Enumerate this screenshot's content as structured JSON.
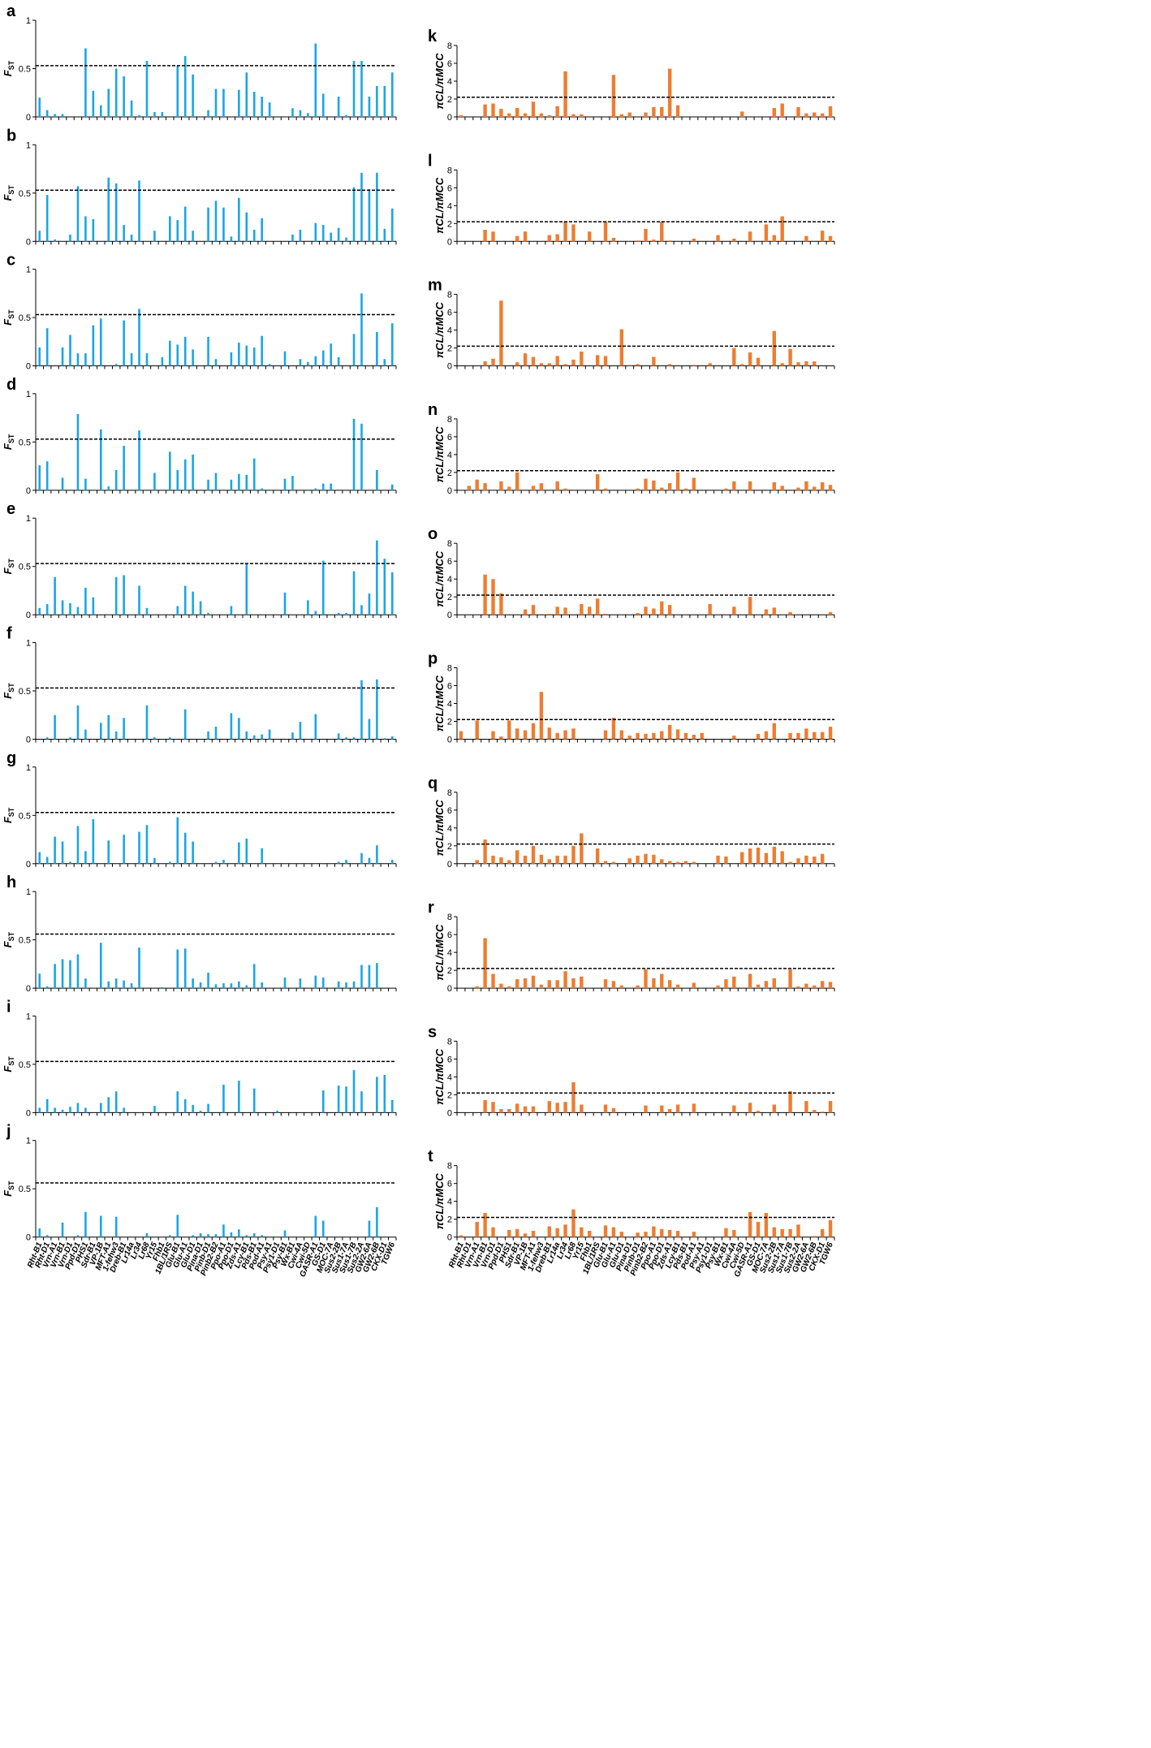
{
  "genes": [
    "Rht-B1",
    "Rht-D1",
    "Vrn-A1",
    "Vrn-B1",
    "Vrn-D1",
    "Ppd-D1",
    "PHS1",
    "Sdr-B1",
    "VP-1B",
    "MFT-A1",
    "1-fehw3",
    "Dreb-B1",
    "Lr14a",
    "Lr34",
    "Lr68",
    "Yr15",
    "Fhb1",
    "1BL/1RS",
    "Glu-B1",
    "Glu-A1",
    "Glu-D1",
    "Pina-D1",
    "Pinb-D1",
    "Pinb2-B2",
    "Ppo-A1",
    "Ppo-D1",
    "Zds-A1",
    "Lcy-B1",
    "Pds-B1",
    "Pod-A1",
    "Psy-A1",
    "Psy1-D1",
    "Psy-B1",
    "Wx-B1",
    "Cwi-4A",
    "Cwi-5D",
    "GASR-A1",
    "GS-D1",
    "MOC-7A",
    "Sus2-2B",
    "Sus1-7A",
    "Sus1-7B",
    "Sus2-2A",
    "GW2-6A",
    "GW2-6B",
    "CKX-D1",
    "TGW6"
  ],
  "colors": {
    "fst": "#1aa6e4",
    "pi": "#ed7d31",
    "axis": "#000000"
  },
  "chart_data": [
    {
      "label": "a",
      "type": "bar",
      "ylabel": "F",
      "ylabel_sub": "ST",
      "ylim": [
        0,
        1
      ],
      "yticks": [
        "0",
        "0.5",
        "1"
      ],
      "threshold": 0.53,
      "values": [
        0.2,
        0.07,
        0.03,
        0.03,
        0.0,
        0.0,
        0.71,
        0.27,
        0.12,
        0.29,
        0.5,
        0.42,
        0.17,
        0.02,
        0.58,
        0.05,
        0.05,
        0.0,
        0.53,
        0.63,
        0.44,
        0.0,
        0.07,
        0.29,
        0.29,
        0.0,
        0.28,
        0.46,
        0.26,
        0.21,
        0.15,
        0.0,
        0.0,
        0.09,
        0.07,
        0.04,
        0.76,
        0.24,
        0.0,
        0.21,
        0.02,
        0.58,
        0.58,
        0.21,
        0.32,
        0.32,
        0.46
      ]
    },
    {
      "label": "b",
      "type": "bar",
      "ylabel": "F",
      "ylabel_sub": "ST",
      "ylim": [
        0,
        1
      ],
      "yticks": [
        "0",
        "0.5",
        "1"
      ],
      "threshold": 0.53,
      "values": [
        0.11,
        0.48,
        0.02,
        0.0,
        0.07,
        0.57,
        0.26,
        0.23,
        0.0,
        0.66,
        0.6,
        0.17,
        0.07,
        0.63,
        0.0,
        0.11,
        0.0,
        0.26,
        0.22,
        0.36,
        0.11,
        0.0,
        0.35,
        0.42,
        0.35,
        0.05,
        0.45,
        0.3,
        0.12,
        0.24,
        0.0,
        0.0,
        0.0,
        0.07,
        0.12,
        0.0,
        0.19,
        0.17,
        0.09,
        0.14,
        0.04,
        0.56,
        0.71,
        0.54,
        0.71,
        0.13,
        0.34
      ]
    },
    {
      "label": "c",
      "type": "bar",
      "ylabel": "F",
      "ylabel_sub": "ST",
      "ylim": [
        0,
        1
      ],
      "yticks": [
        "0",
        "0.5",
        "1"
      ],
      "threshold": 0.53,
      "values": [
        0.19,
        0.39,
        0.0,
        0.19,
        0.32,
        0.13,
        0.13,
        0.42,
        0.49,
        0.0,
        0.02,
        0.47,
        0.13,
        0.59,
        0.13,
        0.0,
        0.09,
        0.26,
        0.22,
        0.3,
        0.17,
        0.0,
        0.3,
        0.07,
        0.0,
        0.14,
        0.24,
        0.21,
        0.19,
        0.31,
        0.02,
        0.0,
        0.15,
        0.0,
        0.07,
        0.04,
        0.1,
        0.16,
        0.23,
        0.09,
        0.0,
        0.33,
        0.75,
        0.0,
        0.35,
        0.07,
        0.44
      ]
    },
    {
      "label": "d",
      "type": "bar",
      "ylabel": "F",
      "ylabel_sub": "ST",
      "ylim": [
        0,
        1
      ],
      "yticks": [
        "0",
        "0.5",
        "1"
      ],
      "threshold": 0.53,
      "values": [
        0.26,
        0.3,
        0.0,
        0.13,
        0.0,
        0.79,
        0.12,
        0.0,
        0.63,
        0.04,
        0.21,
        0.46,
        0.0,
        0.62,
        0.0,
        0.18,
        0.0,
        0.4,
        0.21,
        0.32,
        0.37,
        0.0,
        0.11,
        0.18,
        0.0,
        0.11,
        0.17,
        0.16,
        0.33,
        0.02,
        0.0,
        0.0,
        0.12,
        0.15,
        0.0,
        0.0,
        0.02,
        0.07,
        0.07,
        0.0,
        0.0,
        0.74,
        0.69,
        0.0,
        0.21,
        0.0,
        0.06
      ]
    },
    {
      "label": "e",
      "type": "bar",
      "ylabel": "F",
      "ylabel_sub": "ST",
      "ylim": [
        0,
        1
      ],
      "yticks": [
        "0",
        "0.5",
        "1"
      ],
      "threshold": 0.53,
      "values": [
        0.07,
        0.11,
        0.39,
        0.15,
        0.12,
        0.08,
        0.28,
        0.18,
        0.0,
        0.0,
        0.39,
        0.41,
        0.0,
        0.3,
        0.07,
        0.0,
        0.0,
        0.0,
        0.09,
        0.3,
        0.24,
        0.14,
        0.02,
        0.0,
        0.0,
        0.09,
        0.0,
        0.53,
        0.0,
        0.0,
        0.0,
        0.0,
        0.23,
        0.0,
        0.0,
        0.15,
        0.04,
        0.56,
        0.0,
        0.02,
        0.02,
        0.45,
        0.1,
        0.22,
        0.77,
        0.58,
        0.44
      ]
    },
    {
      "label": "f",
      "type": "bar",
      "ylabel": "F",
      "ylabel_sub": "ST",
      "ylim": [
        0,
        1
      ],
      "yticks": [
        "0",
        "0.5",
        "1"
      ],
      "threshold": 0.53,
      "values": [
        0.0,
        0.02,
        0.25,
        0.0,
        0.02,
        0.35,
        0.1,
        0.0,
        0.17,
        0.25,
        0.08,
        0.22,
        0.0,
        0.0,
        0.35,
        0.02,
        0.0,
        0.02,
        0.0,
        0.31,
        0.0,
        0.0,
        0.08,
        0.13,
        0.0,
        0.27,
        0.22,
        0.08,
        0.04,
        0.05,
        0.1,
        0.0,
        0.0,
        0.07,
        0.18,
        0.0,
        0.26,
        0.0,
        0.0,
        0.06,
        0.02,
        0.02,
        0.61,
        0.21,
        0.62,
        0.01,
        0.03
      ]
    },
    {
      "label": "g",
      "type": "bar",
      "ylabel": "F",
      "ylabel_sub": "ST",
      "ylim": [
        0,
        1
      ],
      "yticks": [
        "0",
        "0.5",
        "1"
      ],
      "threshold": 0.53,
      "values": [
        0.12,
        0.07,
        0.28,
        0.23,
        0.02,
        0.39,
        0.13,
        0.46,
        0.0,
        0.24,
        0.0,
        0.3,
        0.0,
        0.33,
        0.4,
        0.06,
        0.0,
        0.02,
        0.48,
        0.32,
        0.23,
        0.0,
        0.0,
        0.02,
        0.04,
        0.0,
        0.22,
        0.26,
        0.0,
        0.16,
        0.0,
        0.0,
        0.0,
        0.0,
        0.0,
        0.0,
        0.0,
        0.0,
        0.0,
        0.02,
        0.04,
        0.0,
        0.11,
        0.06,
        0.19,
        0.0,
        0.04
      ]
    },
    {
      "label": "h",
      "type": "bar",
      "ylabel": "F",
      "ylabel_sub": "ST",
      "ylim": [
        0,
        1
      ],
      "yticks": [
        "0",
        "0.5",
        "1"
      ],
      "threshold": 0.56,
      "values": [
        0.15,
        0.02,
        0.25,
        0.3,
        0.29,
        0.35,
        0.1,
        0.0,
        0.47,
        0.07,
        0.1,
        0.08,
        0.05,
        0.42,
        0.0,
        0.0,
        0.01,
        0.0,
        0.4,
        0.41,
        0.1,
        0.06,
        0.16,
        0.04,
        0.05,
        0.05,
        0.07,
        0.03,
        0.25,
        0.06,
        0.0,
        0.0,
        0.11,
        0.0,
        0.1,
        0.0,
        0.13,
        0.11,
        0.0,
        0.07,
        0.06,
        0.07,
        0.24,
        0.24,
        0.26,
        0.0,
        0.0
      ]
    },
    {
      "label": "i",
      "type": "bar",
      "ylabel": "F",
      "ylabel_sub": "ST",
      "ylim": [
        0,
        1
      ],
      "yticks": [
        "0",
        "0.5",
        "1"
      ],
      "threshold": 0.53,
      "values": [
        0.05,
        0.14,
        0.05,
        0.03,
        0.06,
        0.1,
        0.05,
        0.0,
        0.1,
        0.16,
        0.22,
        0.05,
        0.0,
        0.0,
        0.0,
        0.07,
        0.0,
        0.0,
        0.22,
        0.14,
        0.08,
        0.02,
        0.09,
        0.0,
        0.29,
        0.0,
        0.33,
        0.0,
        0.25,
        0.0,
        0.0,
        0.02,
        0.0,
        0.0,
        0.0,
        0.0,
        0.0,
        0.23,
        0.0,
        0.28,
        0.27,
        0.44,
        0.22,
        0.0,
        0.37,
        0.39,
        0.13
      ]
    },
    {
      "label": "j",
      "type": "bar",
      "ylabel": "F",
      "ylabel_sub": "ST",
      "ylim": [
        0,
        1
      ],
      "yticks": [
        "0",
        "0.5",
        "1"
      ],
      "threshold": 0.56,
      "values": [
        0.09,
        0.02,
        0.0,
        0.15,
        0.0,
        0.02,
        0.26,
        0.0,
        0.22,
        0.0,
        0.21,
        0.0,
        0.0,
        0.0,
        0.04,
        0.0,
        0.0,
        0.02,
        0.23,
        0.0,
        0.02,
        0.04,
        0.03,
        0.03,
        0.13,
        0.05,
        0.08,
        0.02,
        0.04,
        0.02,
        0.0,
        0.0,
        0.07,
        0.0,
        0.0,
        0.0,
        0.22,
        0.17,
        0.0,
        0.0,
        0.0,
        0.0,
        0.0,
        0.17,
        0.31,
        0.0,
        0.0
      ]
    },
    {
      "label": "k",
      "type": "bar",
      "ylabel": "πCL/πMCC",
      "ylim": [
        0,
        8
      ],
      "yticks": [
        "0",
        "2",
        "4",
        "6",
        "8"
      ],
      "threshold": 2.2,
      "values": [
        0.2,
        0.0,
        0.0,
        1.4,
        1.5,
        0.9,
        0.4,
        1.0,
        0.4,
        1.7,
        0.4,
        0.2,
        1.2,
        5.1,
        0.3,
        0.3,
        0.0,
        0.0,
        0.0,
        4.7,
        0.3,
        0.5,
        0.0,
        0.5,
        1.1,
        1.1,
        5.4,
        1.3,
        0.0,
        0.0,
        0.0,
        0.0,
        0.0,
        0.0,
        0.0,
        0.6,
        0.0,
        0.0,
        0.0,
        1.0,
        1.5,
        0.0,
        1.1,
        0.4,
        0.5,
        0.4,
        1.2
      ]
    },
    {
      "label": "l",
      "type": "bar",
      "ylabel": "πCL/πMCC",
      "ylim": [
        0,
        8
      ],
      "yticks": [
        "0",
        "2",
        "4",
        "6",
        "8"
      ],
      "threshold": 2.2,
      "values": [
        0.0,
        0.0,
        0.0,
        1.3,
        1.1,
        0.0,
        0.0,
        0.6,
        1.1,
        0.0,
        0.0,
        0.7,
        0.8,
        2.2,
        1.9,
        0.0,
        1.1,
        0.0,
        2.2,
        0.4,
        0.0,
        0.0,
        0.1,
        1.4,
        0.2,
        2.2,
        0.1,
        0.0,
        0.0,
        0.3,
        0.0,
        0.0,
        0.7,
        0.0,
        0.3,
        0.0,
        1.1,
        0.0,
        1.9,
        0.7,
        2.8,
        0.0,
        0.0,
        0.6,
        0.0,
        1.2,
        0.6
      ]
    },
    {
      "label": "m",
      "type": "bar",
      "ylabel": "πCL/πMCC",
      "ylim": [
        0,
        8
      ],
      "yticks": [
        "0",
        "2",
        "4",
        "6",
        "8"
      ],
      "threshold": 2.2,
      "values": [
        0.0,
        0.0,
        0.0,
        0.5,
        0.8,
        7.3,
        0.0,
        0.4,
        1.4,
        1.0,
        0.3,
        0.3,
        1.1,
        0.2,
        0.7,
        1.6,
        0.0,
        1.2,
        1.1,
        0.0,
        4.1,
        0.1,
        0.2,
        0.0,
        1.0,
        0.0,
        0.2,
        0.0,
        0.0,
        0.1,
        0.0,
        0.3,
        0.0,
        0.0,
        2.0,
        0.2,
        1.5,
        0.9,
        0.0,
        3.9,
        0.3,
        1.9,
        0.4,
        0.5,
        0.5,
        0.0,
        0.0
      ]
    },
    {
      "label": "n",
      "type": "bar",
      "ylabel": "πCL/πMCC",
      "ylim": [
        0,
        8
      ],
      "yticks": [
        "0",
        "2",
        "4",
        "6",
        "8"
      ],
      "threshold": 2.2,
      "values": [
        0.0,
        0.5,
        1.2,
        0.8,
        0.0,
        1.0,
        0.4,
        2.0,
        0.0,
        0.5,
        0.8,
        0.0,
        1.0,
        0.2,
        0.0,
        0.0,
        0.0,
        1.8,
        0.2,
        0.0,
        0.0,
        0.0,
        0.2,
        1.3,
        1.1,
        0.3,
        0.8,
        2.0,
        0.2,
        1.4,
        0.0,
        0.0,
        0.0,
        0.2,
        1.0,
        0.0,
        1.0,
        0.0,
        0.0,
        0.9,
        0.5,
        0.0,
        0.3,
        1.0,
        0.4,
        0.9,
        0.6
      ]
    },
    {
      "label": "o",
      "type": "bar",
      "ylabel": "πCL/πMCC",
      "ylim": [
        0,
        8
      ],
      "yticks": [
        "0",
        "2",
        "4",
        "6",
        "8"
      ],
      "threshold": 2.2,
      "values": [
        0.0,
        0.0,
        0.0,
        4.5,
        4.0,
        2.4,
        0.0,
        0.0,
        0.6,
        1.1,
        0.0,
        0.1,
        0.9,
        0.8,
        0.0,
        1.2,
        0.9,
        1.8,
        0.1,
        0.0,
        0.0,
        0.0,
        0.2,
        0.9,
        0.7,
        1.5,
        1.1,
        0.0,
        0.0,
        0.0,
        0.0,
        1.2,
        0.0,
        0.0,
        0.9,
        0.0,
        2.0,
        0.0,
        0.6,
        0.8,
        0.0,
        0.3,
        0.0,
        0.0,
        0.0,
        0.0,
        0.3
      ]
    },
    {
      "label": "p",
      "type": "bar",
      "ylabel": "πCL/πMCC",
      "ylim": [
        0,
        8
      ],
      "yticks": [
        "0",
        "2",
        "4",
        "6",
        "8"
      ],
      "threshold": 2.2,
      "values": [
        0.9,
        0.0,
        2.1,
        0.0,
        0.9,
        0.3,
        2.1,
        1.2,
        1.0,
        1.8,
        5.3,
        1.3,
        0.7,
        1.0,
        1.2,
        0.0,
        0.0,
        0.0,
        1.0,
        2.4,
        1.0,
        0.4,
        0.7,
        0.6,
        0.7,
        0.9,
        1.6,
        1.1,
        0.7,
        0.5,
        0.7,
        0.0,
        0.0,
        0.0,
        0.4,
        0.0,
        0.0,
        0.6,
        0.9,
        1.8,
        0.0,
        0.7,
        0.7,
        1.2,
        0.8,
        0.8,
        1.4
      ]
    },
    {
      "label": "q",
      "type": "bar",
      "ylabel": "πCL/πMCC",
      "ylim": [
        0,
        8
      ],
      "yticks": [
        "0",
        "2",
        "4",
        "6",
        "8"
      ],
      "threshold": 2.2,
      "values": [
        0.0,
        0.0,
        0.4,
        2.7,
        0.9,
        0.7,
        0.4,
        1.5,
        0.9,
        2.0,
        1.0,
        0.5,
        0.9,
        0.9,
        2.0,
        3.4,
        0.0,
        1.7,
        0.3,
        0.2,
        0.0,
        0.6,
        0.9,
        1.1,
        1.0,
        0.5,
        0.3,
        0.2,
        0.3,
        0.2,
        0.0,
        0.0,
        0.9,
        0.8,
        0.0,
        1.3,
        1.7,
        1.8,
        1.2,
        1.9,
        1.4,
        0.2,
        0.6,
        0.9,
        0.8,
        1.1,
        0.0
      ]
    },
    {
      "label": "r",
      "type": "bar",
      "ylabel": "πCL/πMCC",
      "ylim": [
        0,
        8
      ],
      "yticks": [
        "0",
        "2",
        "4",
        "6",
        "8"
      ],
      "threshold": 2.2,
      "values": [
        0.0,
        0.0,
        0.2,
        5.6,
        1.6,
        0.5,
        0.2,
        1.0,
        1.1,
        1.4,
        0.4,
        0.9,
        0.9,
        1.9,
        1.1,
        1.3,
        0.0,
        0.0,
        1.0,
        0.8,
        0.3,
        0.0,
        0.3,
        2.1,
        1.1,
        1.6,
        0.9,
        0.4,
        0.0,
        0.6,
        0.0,
        0.0,
        0.3,
        1.0,
        1.3,
        0.0,
        1.6,
        0.4,
        0.8,
        1.1,
        0.0,
        2.1,
        0.2,
        0.5,
        0.3,
        0.8,
        0.7
      ]
    },
    {
      "label": "s",
      "type": "bar",
      "ylabel": "πCL/πMCC",
      "ylim": [
        0,
        8
      ],
      "yticks": [
        "0",
        "2",
        "4",
        "6",
        "8"
      ],
      "threshold": 2.2,
      "values": [
        0.0,
        0.0,
        0.0,
        1.4,
        1.2,
        0.4,
        0.4,
        1.0,
        0.7,
        0.7,
        0.0,
        1.3,
        1.1,
        1.2,
        3.4,
        0.9,
        0.0,
        0.0,
        0.9,
        0.5,
        0.0,
        0.0,
        0.0,
        0.8,
        0.0,
        0.8,
        0.4,
        0.9,
        0.0,
        1.0,
        0.0,
        0.0,
        0.0,
        0.0,
        0.8,
        0.0,
        1.1,
        0.2,
        0.0,
        0.9,
        0.0,
        2.4,
        0.0,
        1.3,
        0.3,
        0.1,
        1.3
      ]
    },
    {
      "label": "t",
      "type": "bar",
      "ylabel": "πCL/πMCC",
      "ylim": [
        0,
        8
      ],
      "yticks": [
        "0",
        "2",
        "4",
        "6",
        "8"
      ],
      "threshold": 2.2,
      "values": [
        0.2,
        0.0,
        1.7,
        2.7,
        1.1,
        0.0,
        0.8,
        0.9,
        0.4,
        0.7,
        0.0,
        1.2,
        1.0,
        1.4,
        3.1,
        1.1,
        0.7,
        0.0,
        1.3,
        1.1,
        0.6,
        0.0,
        0.5,
        0.6,
        1.2,
        0.9,
        0.8,
        0.7,
        0.0,
        0.6,
        0.0,
        0.0,
        0.0,
        1.0,
        0.8,
        0.0,
        2.8,
        1.7,
        2.7,
        1.1,
        0.9,
        0.9,
        1.4,
        0.0,
        0.1,
        0.9,
        1.9
      ]
    }
  ]
}
